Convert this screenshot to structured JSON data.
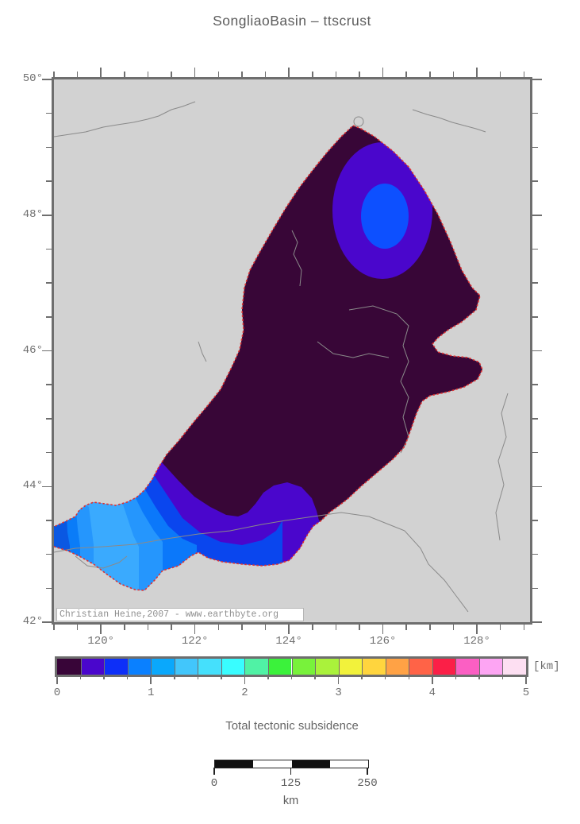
{
  "title": "SongliaoBasin – ttscrust",
  "subtitle": "Total tectonic subsidence",
  "map": {
    "background": "#d2d2d2",
    "frame_color": "#6e6e6e",
    "river_color": "#8a8a8a",
    "basin_boundary_color": "#e03030",
    "attribution": "Christian Heine,2007 - www.earthbyte.org",
    "axes": {
      "lat": {
        "min": 42,
        "max": 50,
        "minor_step": 0.5,
        "labels": [
          {
            "v": 50,
            "text": "50°"
          },
          {
            "v": 48,
            "text": "48°"
          },
          {
            "v": 46,
            "text": "46°"
          },
          {
            "v": 44,
            "text": "44°"
          },
          {
            "v": 42,
            "text": "42°"
          }
        ]
      },
      "lon": {
        "min": 119,
        "max": 129.13,
        "minor_step": 0.5,
        "labels": [
          {
            "v": 120,
            "text": "120°"
          },
          {
            "v": 122,
            "text": "122°"
          },
          {
            "v": 124,
            "text": "124°"
          },
          {
            "v": 126,
            "text": "126°"
          },
          {
            "v": 128,
            "text": "128°"
          }
        ]
      }
    },
    "region_colors": {
      "basin_core": "#380637",
      "depocenter_ring": "#4a06cc",
      "depocenter_core": "#0d50ff",
      "sw_bands_outward": [
        "#0a46ee",
        "#0b78fa",
        "#2596fd",
        "#3aaafe",
        "#2596fd",
        "#0a7cf8",
        "#0a58e2"
      ]
    }
  },
  "colorbar": {
    "min": 0,
    "max": 5,
    "segment_step": 0.25,
    "unit": "[km]",
    "tick_labels": [
      "0",
      "1",
      "2",
      "3",
      "4",
      "5"
    ],
    "colors": [
      "#380538",
      "#4a06cc",
      "#0d2ff8",
      "#0a80ff",
      "#0aa8fc",
      "#42c6fb",
      "#45e0fc",
      "#39fdff",
      "#50f2a5",
      "#3bf23b",
      "#78f23b",
      "#aaf23b",
      "#f2f23b",
      "#ffd53e",
      "#ffa245",
      "#ff6347",
      "#fb1f47",
      "#fb5fc3",
      "#fda5f3",
      "#fddff2"
    ]
  },
  "scalebar": {
    "labels": [
      "0",
      "125",
      "250"
    ],
    "unit": "km",
    "segment_colors": [
      "#111111",
      "#ffffff",
      "#111111",
      "#ffffff"
    ]
  }
}
